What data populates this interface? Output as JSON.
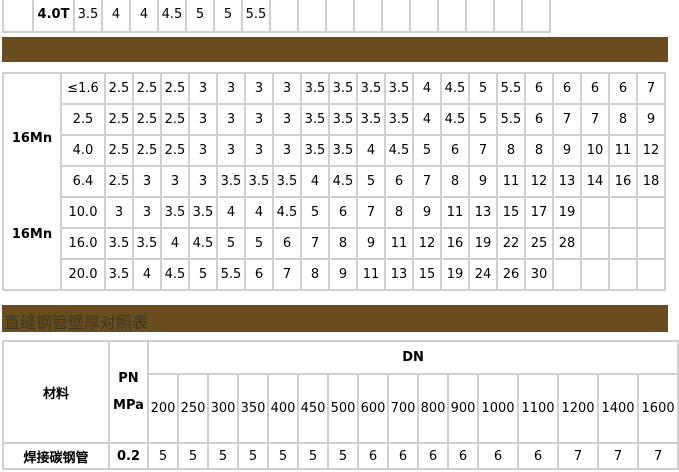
{
  "top_table": {
    "pn": "4.0T",
    "values": [
      "3.5",
      "4",
      "4",
      "4.5",
      "5",
      "5",
      "5.5",
      "",
      "",
      "",
      "",
      "",
      "",
      "",
      "",
      "",
      ""
    ]
  },
  "mid_table": {
    "materials": [
      "16Mn",
      "16Mn"
    ],
    "rows": [
      {
        "pn": "≤1.6",
        "values": [
          "2.5",
          "2.5",
          "2.5",
          "3",
          "3",
          "3",
          "3",
          "3.5",
          "3.5",
          "3.5",
          "3.5",
          "4",
          "4.5",
          "5",
          "5.5",
          "6",
          "6",
          "6",
          "6",
          "7"
        ]
      },
      {
        "pn": "2.5",
        "values": [
          "2.5",
          "2.5",
          "2.5",
          "3",
          "3",
          "3",
          "3",
          "3.5",
          "3.5",
          "3.5",
          "3.5",
          "4",
          "4.5",
          "5",
          "5.5",
          "6",
          "7",
          "7",
          "8",
          "9"
        ]
      },
      {
        "pn": "4.0",
        "values": [
          "2.5",
          "2.5",
          "2.5",
          "3",
          "3",
          "3",
          "3",
          "3.5",
          "3.5",
          "4",
          "4.5",
          "5",
          "6",
          "7",
          "8",
          "8",
          "9",
          "10",
          "11",
          "12"
        ]
      },
      {
        "pn": "6.4",
        "values": [
          "2.5",
          "3",
          "3",
          "3",
          "3.5",
          "3.5",
          "3.5",
          "4",
          "4.5",
          "5",
          "6",
          "7",
          "8",
          "9",
          "11",
          "12",
          "13",
          "14",
          "16",
          "18"
        ]
      },
      {
        "pn": "10.0",
        "values": [
          "3",
          "3",
          "3.5",
          "3.5",
          "4",
          "4",
          "4.5",
          "5",
          "6",
          "7",
          "8",
          "9",
          "11",
          "13",
          "15",
          "17",
          "19",
          "",
          "",
          ""
        ]
      },
      {
        "pn": "16.0",
        "values": [
          "3.5",
          "3.5",
          "4",
          "4.5",
          "5",
          "5",
          "6",
          "7",
          "8",
          "9",
          "11",
          "12",
          "16",
          "19",
          "22",
          "25",
          "28",
          "",
          "",
          ""
        ]
      },
      {
        "pn": "20.0",
        "values": [
          "3.5",
          "4",
          "4.5",
          "5",
          "5.5",
          "6",
          "7",
          "8",
          "9",
          "11",
          "13",
          "15",
          "19",
          "24",
          "26",
          "30",
          "",
          "",
          "",
          ""
        ]
      }
    ]
  },
  "section_title": "直缝钢管壁厚对照表",
  "bottom_table": {
    "material_header": "材料",
    "pn_header_1": "PN",
    "pn_header_2": "MPa",
    "dn_header": "DN",
    "dn_values": [
      "200",
      "250",
      "300",
      "350",
      "400",
      "450",
      "500",
      "600",
      "700",
      "800",
      "900",
      "1000",
      "1100",
      "1200",
      "1400",
      "1600"
    ],
    "rows": [
      {
        "material": "焊接碳钢管",
        "pn": "0.2",
        "values": [
          "5",
          "5",
          "5",
          "5",
          "5",
          "5",
          "5",
          "6",
          "6",
          "6",
          "6",
          "6",
          "6",
          "7",
          "7",
          "7"
        ]
      }
    ]
  },
  "colors": {
    "banner": "#694d1e",
    "border": "#cfcfcf",
    "title_text": "#3b3a26"
  }
}
